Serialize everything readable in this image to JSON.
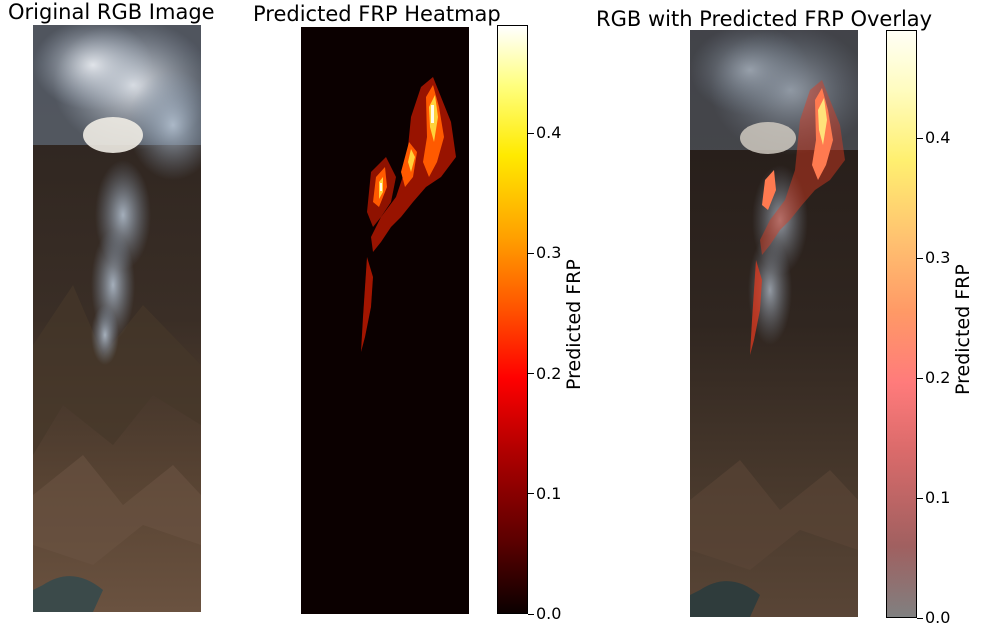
{
  "panels": {
    "original": {
      "title": "Original RGB Image"
    },
    "heatmap": {
      "title": "Predicted FRP Heatmap"
    },
    "overlay": {
      "title": "RGB with Predicted FRP Overlay"
    }
  },
  "colorbars": {
    "heatmap": {
      "label": "Predicted FRP",
      "colormap": "hot",
      "vmin": 0.0,
      "vmax": 0.49,
      "ticks": [
        "0.0",
        "0.1",
        "0.2",
        "0.3",
        "0.4"
      ]
    },
    "overlay": {
      "label": "Predicted FRP",
      "colormap": "hot (alpha blended)",
      "vmin": 0.0,
      "vmax": 0.49,
      "ticks": [
        "0.0",
        "0.1",
        "0.2",
        "0.3",
        "0.4"
      ]
    }
  },
  "chart_data": [
    {
      "type": "image",
      "title": "Original RGB Image"
    },
    {
      "type": "heatmap",
      "title": "Predicted FRP Heatmap",
      "colorbar_label": "Predicted FRP",
      "colorbar_range": [
        0.0,
        0.49
      ],
      "colorbar_ticks": [
        0.0,
        0.1,
        0.2,
        0.3,
        0.4
      ],
      "colormap": "hot"
    },
    {
      "type": "heatmap",
      "title": "RGB with Predicted FRP Overlay",
      "colorbar_label": "Predicted FRP",
      "colorbar_range": [
        0.0,
        0.49
      ],
      "colorbar_ticks": [
        0.0,
        0.1,
        0.2,
        0.3,
        0.4
      ],
      "colormap": "hot (overlay)"
    }
  ]
}
